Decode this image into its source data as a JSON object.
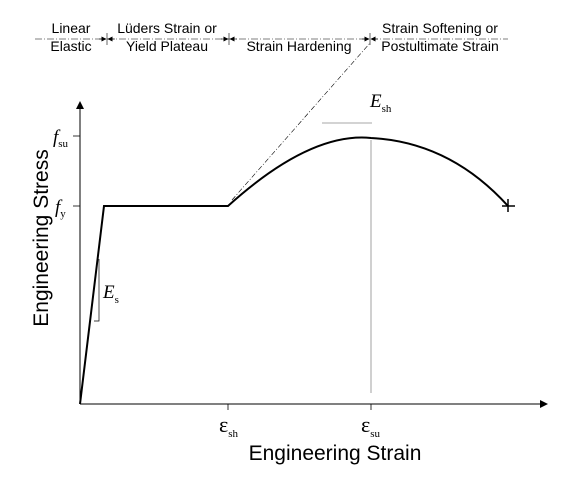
{
  "regions": [
    {
      "lines": [
        "Linear",
        "Elastic"
      ]
    },
    {
      "lines": [
        "Lüders Strain or",
        "Yield Plateau"
      ]
    },
    {
      "lines": [
        "Strain Hardening"
      ]
    },
    {
      "lines": [
        "Strain Softening or",
        "Postultimate Strain"
      ]
    }
  ],
  "axes": {
    "y_title": "Engineering Stress",
    "x_title": "Engineering Strain"
  },
  "symbols": {
    "fsu": {
      "base": "f",
      "sub": "su"
    },
    "fy": {
      "base": "f",
      "sub": "y"
    },
    "Es": {
      "base": "E",
      "sub": "s"
    },
    "Esh": {
      "base": "E",
      "sub": "sh"
    },
    "eps_sh": {
      "base": "ε",
      "sub": "sh"
    },
    "eps_su": {
      "base": "ε",
      "sub": "su"
    }
  },
  "curve_data": {
    "type": "stress-strain",
    "x_ticks": [
      "ε_sh",
      "ε_su"
    ],
    "y_ticks": [
      "f_y",
      "f_su"
    ],
    "segments": [
      "linear elastic",
      "yield plateau",
      "strain hardening",
      "strain softening"
    ],
    "fracture_marker": "+"
  },
  "colors": {
    "ink": "#000000",
    "guide": "#8a8a8a"
  }
}
